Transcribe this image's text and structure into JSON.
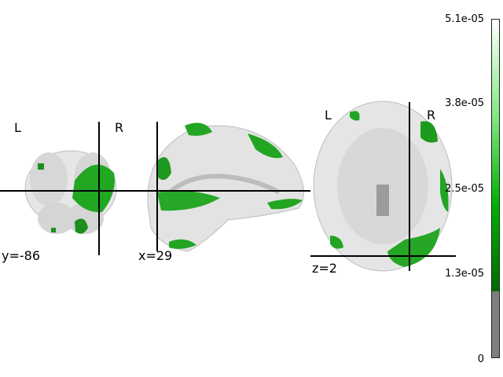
{
  "views": {
    "coronal": {
      "left_label": "L",
      "right_label": "R",
      "coord": "y=-86"
    },
    "sagittal": {
      "coord": "x=29"
    },
    "axial": {
      "left_label": "L",
      "right_label": "R",
      "coord": "z=2"
    }
  },
  "colorbar": {
    "ticks": [
      "5.1e-05",
      "3.8e-05",
      "2.5e-05",
      "1.3e-05",
      "0"
    ],
    "colors": {
      "low": "#7f7f7f",
      "mid": "#00a000",
      "high": "#ffffff"
    }
  },
  "colors": {
    "brain": "#d9d9d9",
    "activation": "#1f9d1f",
    "crosshair": "#000000"
  }
}
